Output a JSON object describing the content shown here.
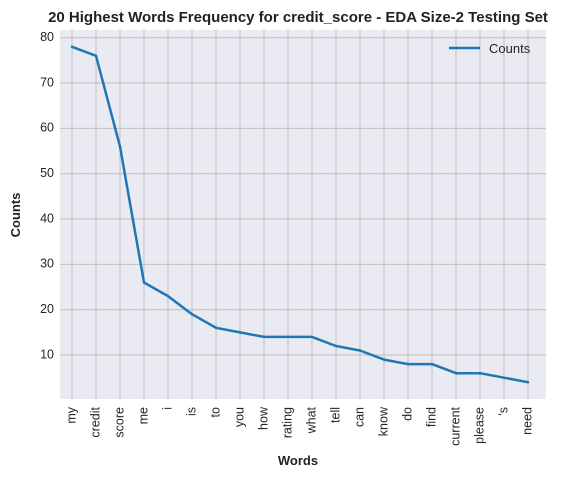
{
  "chart_data": {
    "type": "line",
    "title": "20 Highest Words Frequency for credit_score - EDA Size-2 Testing Set",
    "xlabel": "Words",
    "ylabel": "Counts",
    "categories": [
      "my",
      "credit",
      "score",
      "me",
      "i",
      "is",
      "to",
      "you",
      "how",
      "rating",
      "what",
      "tell",
      "can",
      "know",
      "do",
      "find",
      "current",
      "please",
      "'s",
      "need"
    ],
    "series": [
      {
        "name": "Counts",
        "values": [
          78,
          76,
          56,
          26,
          23,
          19,
          16,
          15,
          14,
          14,
          14,
          12,
          11,
          9,
          8,
          8,
          6,
          6,
          5,
          4
        ],
        "color": "#1f77b4"
      }
    ],
    "ylim": [
      0.3,
      81.7
    ],
    "yticks": [
      10,
      20,
      30,
      40,
      50,
      60,
      70,
      80
    ],
    "grid": true,
    "legend_position": "top-right",
    "colors": {
      "background": "#eaeaf2",
      "grid": "#c0c0c0",
      "line": "#1f77b4"
    }
  }
}
